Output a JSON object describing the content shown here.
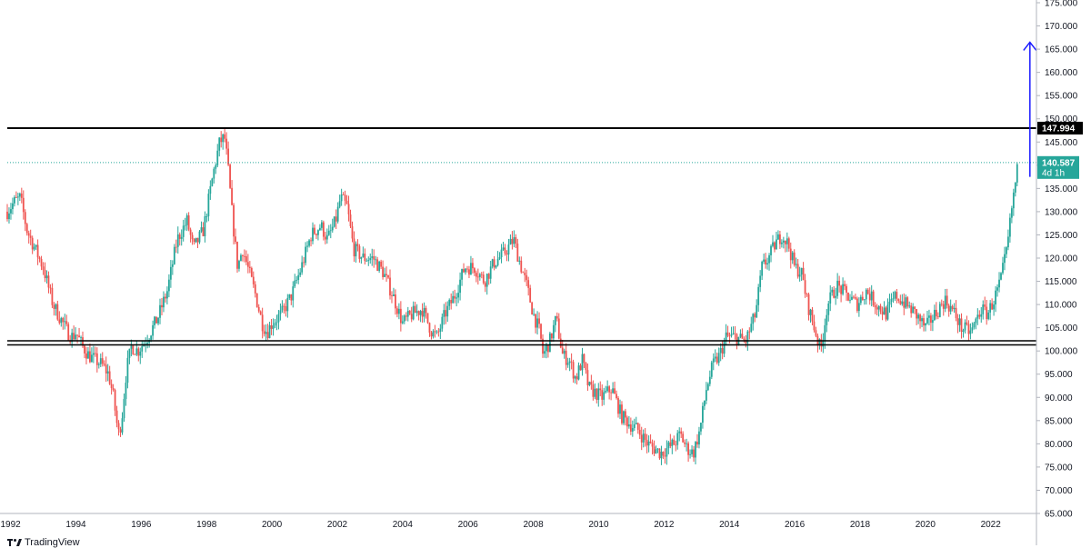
{
  "brand": {
    "name": "TradingView"
  },
  "colors": {
    "up": "#26a69a",
    "down": "#ef5350",
    "price_line": "#26a69a",
    "resistance": "#000000",
    "support": "#000000",
    "arrow": "#1a1aff",
    "tag_last_bg": "#26a69a",
    "tag_level_bg": "#000000",
    "tag_text": "#ffffff"
  },
  "chart_data": {
    "type": "candlestick",
    "title": "",
    "xlabel": "",
    "ylabel": "",
    "xlim": [
      1991.9,
      2023.4
    ],
    "ylim": [
      65,
      175
    ],
    "grid": false,
    "y_ticks": [
      "175.000",
      "170.000",
      "165.000",
      "160.000",
      "155.000",
      "150.000",
      "145.000",
      "140.000",
      "135.000",
      "130.000",
      "125.000",
      "120.000",
      "115.000",
      "110.000",
      "105.000",
      "100.000",
      "95.000",
      "90.000",
      "85.000",
      "80.000",
      "75.000",
      "70.000",
      "65.000"
    ],
    "x_ticks": [
      "1992",
      "1994",
      "1996",
      "1998",
      "2000",
      "2002",
      "2004",
      "2006",
      "2008",
      "2010",
      "2012",
      "2014",
      "2016",
      "2018",
      "2020",
      "2022"
    ],
    "last_price": {
      "value": 140.587,
      "label": "140.587",
      "countdown": "4d 1h"
    },
    "resistance": {
      "value": 147.994,
      "label": "147.994"
    },
    "support_zone": [
      101.3,
      102.2
    ],
    "projection_arrow": {
      "x": 2023.2,
      "from": 137.5,
      "to": 166.5
    },
    "series": [
      {
        "x": [
          1991.9,
          1992.1,
          1992.3,
          1992.5,
          1992.75,
          1993.0,
          1993.3,
          1993.6,
          1993.75,
          1993.9,
          1994.0,
          1994.2,
          1994.4,
          1994.6,
          1994.8,
          1995.0,
          1995.15,
          1995.3,
          1995.4,
          1995.55,
          1995.7,
          1995.9,
          1996.2,
          1996.5,
          1996.8,
          1997.1,
          1997.4,
          1997.6,
          1997.9,
          1998.2,
          1998.4,
          1998.55,
          1998.65,
          1998.8,
          1998.95,
          1999.1,
          1999.3,
          1999.5,
          1999.7,
          1999.85,
          2000.0,
          2000.3,
          2000.6,
          2000.9,
          2001.2,
          2001.5,
          2001.7,
          2001.95,
          2002.1,
          2002.3,
          2002.5,
          2002.8,
          2003.1,
          2003.4,
          2003.7,
          2004.0,
          2004.3,
          2004.6,
          2004.9,
          2005.05,
          2005.3,
          2005.6,
          2005.9,
          2006.2,
          2006.5,
          2006.8,
          2007.1,
          2007.4,
          2007.55,
          2007.8,
          2008.0,
          2008.2,
          2008.3,
          2008.5,
          2008.7,
          2008.9,
          2009.1,
          2009.3,
          2009.5,
          2009.7,
          2009.9,
          2010.1,
          2010.4,
          2010.7,
          2011.0,
          2011.2,
          2011.5,
          2011.7,
          2011.9,
          2012.1,
          2012.3,
          2012.5,
          2012.7,
          2012.9,
          2013.1,
          2013.3,
          2013.5,
          2013.7,
          2013.9,
          2014.2,
          2014.5,
          2014.8,
          2015.0,
          2015.2,
          2015.4,
          2015.6,
          2015.8,
          2016.0,
          2016.2,
          2016.4,
          2016.6,
          2016.8,
          2017.0,
          2017.3,
          2017.6,
          2017.9,
          2018.2,
          2018.5,
          2018.8,
          2019.1,
          2019.4,
          2019.7,
          2020.0,
          2020.3,
          2020.6,
          2020.9,
          2021.1,
          2021.4,
          2021.7,
          2021.9,
          2022.1,
          2022.3,
          2022.5,
          2022.65,
          2022.75,
          2022.85
        ],
        "y": [
          130,
          132,
          133,
          126,
          122,
          118,
          110,
          106,
          104,
          103,
          104,
          101,
          99,
          98,
          97,
          95,
          90,
          82,
          85,
          96,
          101,
          100,
          103,
          107,
          113,
          124,
          128,
          122,
          126,
          138,
          145,
          146,
          140,
          128,
          118,
          122,
          117,
          112,
          106,
          104,
          106,
          108,
          112,
          118,
          125,
          127,
          124,
          128,
          133,
          131,
          122,
          120,
          120,
          117,
          112,
          106,
          108,
          109,
          104,
          103,
          108,
          112,
          118,
          118,
          115,
          119,
          121,
          124,
          120,
          114,
          108,
          104,
          99,
          102,
          107,
          99,
          98,
          94,
          98,
          92,
          91,
          90,
          92,
          86,
          84,
          83,
          80,
          79,
          78,
          79,
          80,
          82,
          79,
          78,
          83,
          92,
          97,
          99,
          103,
          103,
          102,
          108,
          118,
          120,
          123,
          125,
          123,
          118,
          117,
          110,
          105,
          100,
          110,
          114,
          112,
          110,
          113,
          110,
          108,
          112,
          110,
          108,
          105,
          108,
          111,
          108,
          105,
          104,
          109,
          108,
          111,
          115,
          122,
          131,
          136,
          140.587
        ]
      }
    ]
  }
}
